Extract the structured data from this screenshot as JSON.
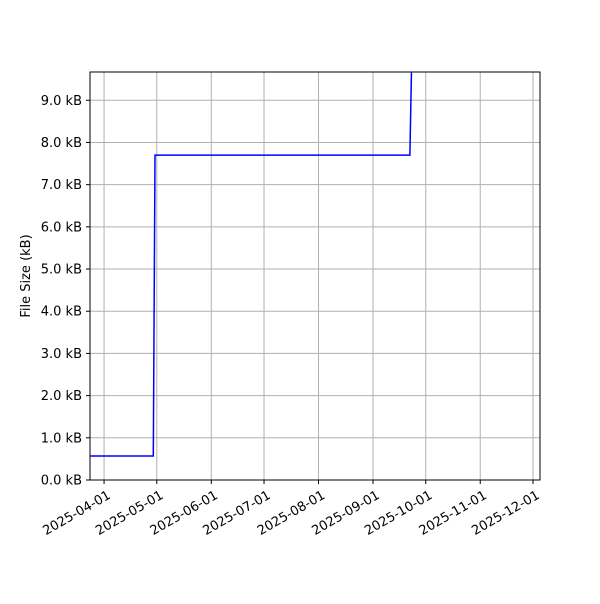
{
  "chart_data": {
    "type": "line",
    "title": "",
    "xlabel": "",
    "ylabel": "File Size (kB)",
    "grid": true,
    "line_color": "#0000ff",
    "xlim": [
      "2025-03-24",
      "2025-12-05"
    ],
    "ylim": [
      0,
      9.67
    ],
    "x_ticks": [
      "2025-04-01",
      "2025-05-01",
      "2025-06-01",
      "2025-07-01",
      "2025-08-01",
      "2025-09-01",
      "2025-10-01",
      "2025-11-01",
      "2025-12-01"
    ],
    "y_ticks": [
      0,
      1,
      2,
      3,
      4,
      5,
      6,
      7,
      8,
      9
    ],
    "y_tick_labels": [
      "0.0 kB",
      "1.0 kB",
      "2.0 kB",
      "3.0 kB",
      "4.0 kB",
      "5.0 kB",
      "6.0 kB",
      "7.0 kB",
      "8.0 kB",
      "9.0 kB"
    ],
    "series": [
      {
        "x": [
          "2025-03-24",
          "2025-04-29",
          "2025-04-30",
          "2025-09-22",
          "2025-09-23"
        ],
        "y": [
          0.57,
          0.57,
          7.7,
          7.7,
          10.0
        ]
      }
    ]
  }
}
